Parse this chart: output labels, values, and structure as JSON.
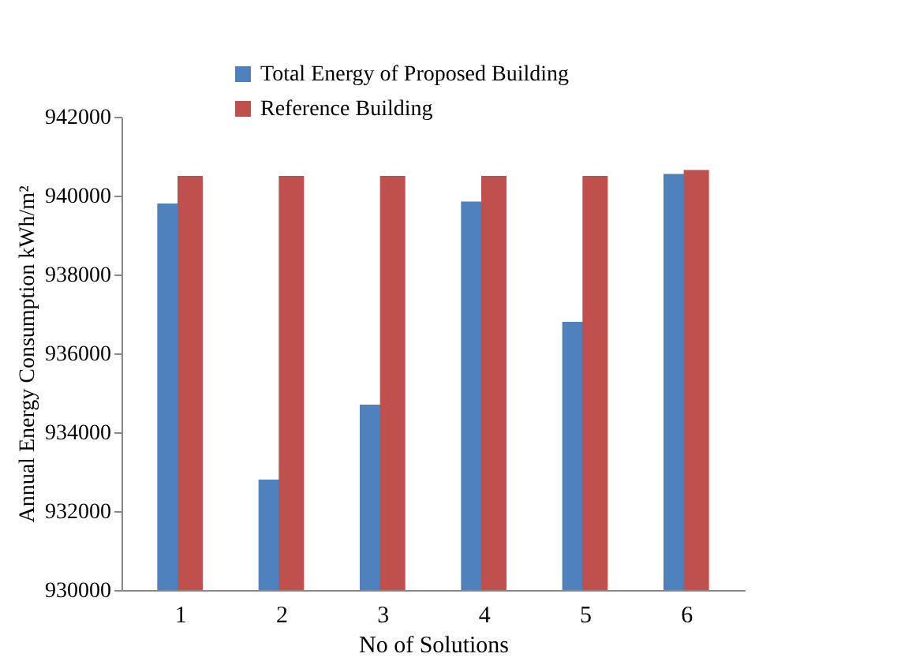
{
  "chart_data": {
    "type": "bar",
    "xlabel": "No of Solutions",
    "ylabel": "Annual Energy Consumption kWh/m²",
    "categories": [
      "1",
      "2",
      "3",
      "4",
      "5",
      "6"
    ],
    "series": [
      {
        "name": "Total Energy of Proposed Building",
        "color": "#4f81bd",
        "values": [
          939800,
          932800,
          934700,
          939850,
          936800,
          940550
        ]
      },
      {
        "name": "Reference Building",
        "color": "#c0504d",
        "values": [
          940500,
          940500,
          940500,
          940500,
          940500,
          940650
        ]
      }
    ],
    "ylim": [
      930000,
      942000
    ],
    "yticks": [
      930000,
      932000,
      934000,
      936000,
      938000,
      940000,
      942000
    ],
    "grid": false,
    "legend": "top"
  }
}
